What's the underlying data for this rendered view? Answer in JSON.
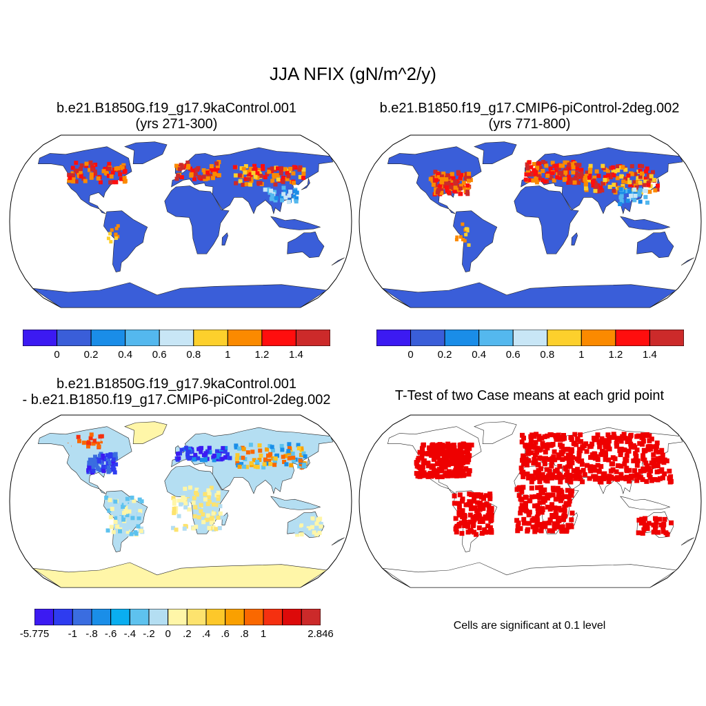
{
  "main_title": "JJA NFIX (gN/m^2/y)",
  "panels": [
    {
      "id": "tl",
      "line1": "b.e21.B1850G.f19_g17.9kaControl.001",
      "line2": "(yrs 271-300)"
    },
    {
      "id": "tr",
      "line1": "b.e21.B1850.f19_g17.CMIP6-piControl-2deg.002",
      "line2": "(yrs 771-800)"
    },
    {
      "id": "bl",
      "line1": "b.e21.B1850G.f19_g17.9kaControl.001",
      "line2": "- b.e21.B1850.f19_g17.CMIP6-piControl-2deg.002"
    },
    {
      "id": "br",
      "line1": "T-Test of two Case means at each grid point"
    }
  ],
  "colorbars": {
    "absolute": {
      "colors": [
        "#3c1af2",
        "#3a5ed9",
        "#1a8de8",
        "#54b8ee",
        "#c8e6f6",
        "#fdd02c",
        "#fb8a00",
        "#ff0e0e",
        "#cc2a2a"
      ],
      "labels": [
        "0",
        "0.2",
        "0.4",
        "0.6",
        "0.8",
        "1",
        "1.2",
        "1.4"
      ]
    },
    "difference": {
      "colors": [
        "#3c1af2",
        "#2e3cf0",
        "#3a6de0",
        "#1a8ee8",
        "#0aaef0",
        "#5ec2ee",
        "#b4def2",
        "#fff6a8",
        "#fde36e",
        "#fdc82a",
        "#faa000",
        "#fa6800",
        "#f53010",
        "#dd0a0a",
        "#cc2a2a"
      ],
      "labels": [
        "-5.775",
        "-1",
        "-.8",
        "-.6",
        "-.4",
        "-.2",
        "0",
        ".2",
        ".4",
        ".6",
        ".8",
        "1",
        "2.846"
      ]
    }
  },
  "significance_note": "Cells are significant at 0.1 level"
}
